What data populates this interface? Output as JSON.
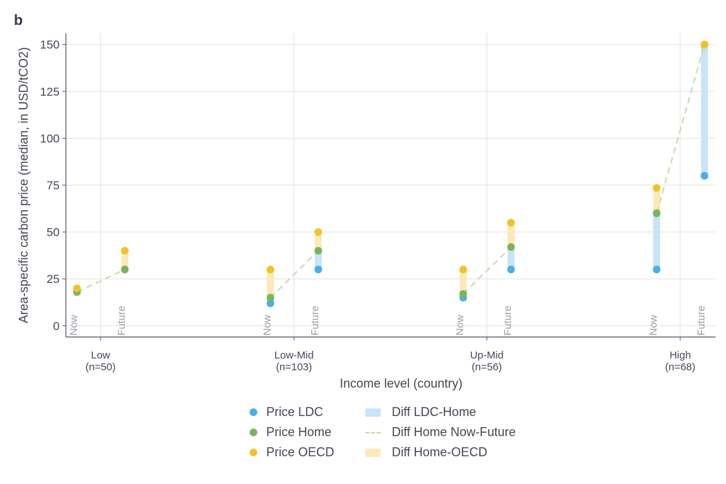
{
  "panel_label": "b",
  "colors": {
    "ldc": "#4baee6",
    "home": "#7ab55c",
    "oecd": "#f4c12a",
    "diff_ldc_home": "#c8e4f8",
    "diff_home_oecd": "#fbeab8",
    "diff_now_future": "#c3dbb0",
    "axis": "#5c4e68",
    "grid": "#e2e2e2"
  },
  "chart_data": {
    "type": "scatter",
    "ylabel": "Area-specific carbon price (median, in USD/tCO2)",
    "xlabel": "Income level (country)",
    "ylim": [
      -6,
      156
    ],
    "yticks": [
      0,
      25,
      50,
      75,
      100,
      125,
      150
    ],
    "grid": true,
    "legend_position": "bottom",
    "groups": [
      {
        "name": "Low",
        "n_label": "(n=50)",
        "now": {
          "ldc": 18,
          "home": 18,
          "oecd": 20
        },
        "future": {
          "ldc": 30,
          "home": 30,
          "oecd": 40
        }
      },
      {
        "name": "Low-Mid",
        "n_label": "(n=103)",
        "now": {
          "ldc": 12,
          "home": 15,
          "oecd": 30
        },
        "future": {
          "ldc": 30,
          "home": 40,
          "oecd": 50
        }
      },
      {
        "name": "Up-Mid",
        "n_label": "(n=56)",
        "now": {
          "ldc": 15,
          "home": 17,
          "oecd": 30
        },
        "future": {
          "ldc": 30,
          "home": 42,
          "oecd": 55
        }
      },
      {
        "name": "High",
        "n_label": "(n=68)",
        "now": {
          "ldc": 30,
          "home": 60,
          "oecd": 73.5
        },
        "future": {
          "ldc": 80,
          "home": 150,
          "oecd": 150
        }
      }
    ],
    "period_labels": [
      "Now",
      "Future"
    ],
    "series": [
      {
        "name": "Price LDC",
        "key": "ldc"
      },
      {
        "name": "Price Home",
        "key": "home"
      },
      {
        "name": "Price OECD",
        "key": "oecd"
      }
    ],
    "legend": [
      {
        "label": "Price LDC",
        "kind": "dot",
        "color_key": "ldc"
      },
      {
        "label": "Diff LDC-Home",
        "kind": "rect",
        "color_key": "diff_ldc_home"
      },
      {
        "label": "Price Home",
        "kind": "dot",
        "color_key": "home"
      },
      {
        "label": "Diff Home Now-Future",
        "kind": "line",
        "color_key": "diff_now_future"
      },
      {
        "label": "Price OECD",
        "kind": "dot",
        "color_key": "oecd"
      },
      {
        "label": "Diff Home-OECD",
        "kind": "rect",
        "color_key": "diff_home_oecd"
      }
    ]
  }
}
